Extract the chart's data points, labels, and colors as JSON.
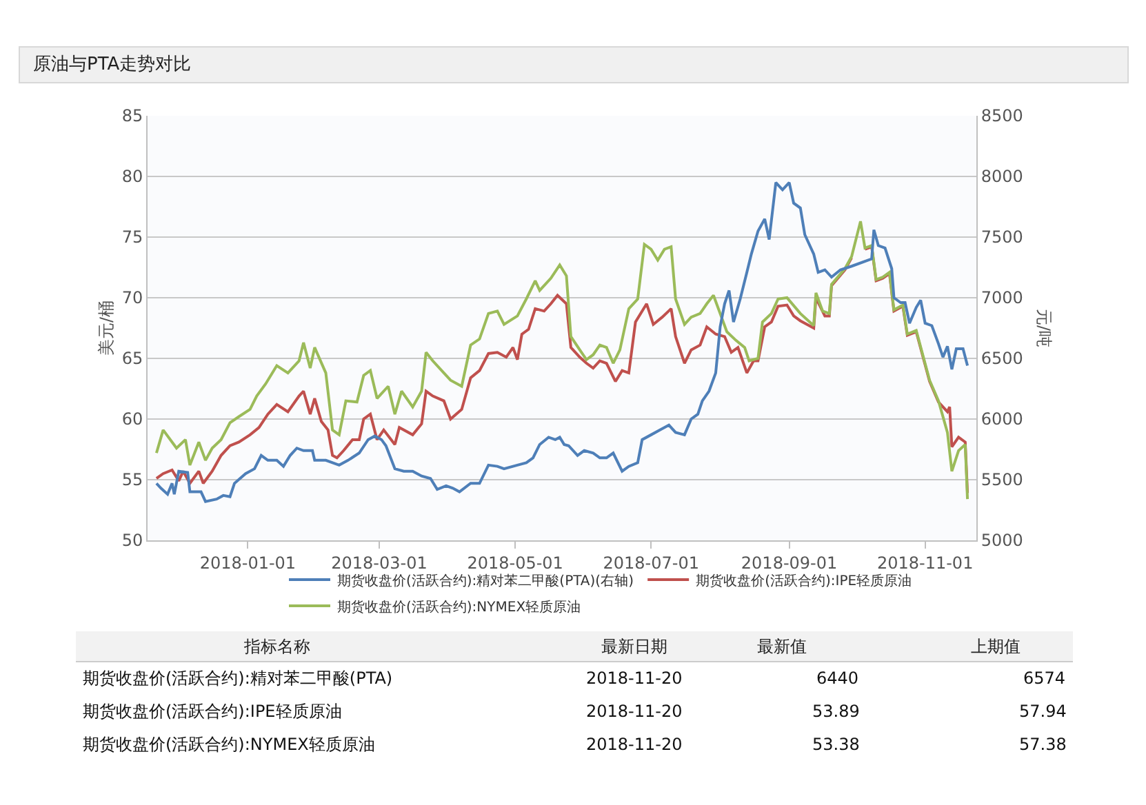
{
  "chart_data": {
    "type": "line",
    "title": "原油与PTA走势对比",
    "ylabel": "美元/桶",
    "y2label": "元/吨",
    "xlim": [
      "2017-11-17",
      "2018-11-24"
    ],
    "xticks": [
      "2018-01-01",
      "2018-03-01",
      "2018-05-01",
      "2018-07-01",
      "2018-09-01",
      "2018-11-01"
    ],
    "ylim": [
      50,
      85
    ],
    "yticks": [
      50,
      55,
      60,
      65,
      70,
      75,
      80,
      85
    ],
    "y2lim": [
      5000,
      8500
    ],
    "y2ticks": [
      5000,
      5500,
      6000,
      6500,
      7000,
      7500,
      8000,
      8500
    ],
    "grid": "y",
    "legend": "bottom",
    "marker": "none",
    "line_style": "solid",
    "series": [
      {
        "name": "期货收盘价(活跃合约):精对苯二甲酸(PTA)(右轴)",
        "color": "#4e7fb8",
        "axis": "y2",
        "x": [
          "2017-11-21",
          "2017-11-23",
          "2017-11-26",
          "2017-11-28",
          "2017-11-29",
          "2017-12-01",
          "2017-12-05",
          "2017-12-06",
          "2017-12-11",
          "2017-12-13",
          "2017-12-18",
          "2017-12-21",
          "2017-12-24",
          "2017-12-26",
          "2017-12-31",
          "2018-01-04",
          "2018-01-07",
          "2018-01-10",
          "2018-01-14",
          "2018-01-17",
          "2018-01-20",
          "2018-01-23",
          "2018-01-26",
          "2018-01-30",
          "2018-01-31",
          "2018-02-05",
          "2018-02-11",
          "2018-02-15",
          "2018-02-20",
          "2018-02-24",
          "2018-02-27",
          "2018-03-02",
          "2018-03-04",
          "2018-03-08",
          "2018-03-12",
          "2018-03-16",
          "2018-03-20",
          "2018-03-24",
          "2018-03-27",
          "2018-03-31",
          "2018-04-03",
          "2018-04-06",
          "2018-04-11",
          "2018-04-15",
          "2018-04-19",
          "2018-04-23",
          "2018-04-26",
          "2018-05-02",
          "2018-05-06",
          "2018-05-09",
          "2018-05-12",
          "2018-05-16",
          "2018-05-19",
          "2018-05-21",
          "2018-05-23",
          "2018-05-25",
          "2018-05-29",
          "2018-06-01",
          "2018-06-05",
          "2018-06-08",
          "2018-06-11",
          "2018-06-14",
          "2018-06-18",
          "2018-06-21",
          "2018-06-25",
          "2018-06-27",
          "2018-07-01",
          "2018-07-05",
          "2018-07-09",
          "2018-07-12",
          "2018-07-16",
          "2018-07-19",
          "2018-07-22",
          "2018-07-24",
          "2018-07-27",
          "2018-07-30",
          "2018-08-01",
          "2018-08-03",
          "2018-08-05",
          "2018-08-07",
          "2018-08-10",
          "2018-08-13",
          "2018-08-15",
          "2018-08-18",
          "2018-08-21",
          "2018-08-23",
          "2018-08-26",
          "2018-08-29",
          "2018-09-01",
          "2018-09-03",
          "2018-09-06",
          "2018-09-08",
          "2018-09-12",
          "2018-09-14",
          "2018-09-17",
          "2018-09-20",
          "2018-09-24",
          "2018-09-29",
          "2018-10-08",
          "2018-10-09",
          "2018-10-11",
          "2018-10-14",
          "2018-10-17",
          "2018-10-18",
          "2018-10-21",
          "2018-10-23",
          "2018-10-25",
          "2018-10-28",
          "2018-10-30",
          "2018-11-01",
          "2018-11-04",
          "2018-11-07",
          "2018-11-09",
          "2018-11-11",
          "2018-11-13",
          "2018-11-15",
          "2018-11-18",
          "2018-11-20"
        ],
        "values": [
          5470,
          5430,
          5380,
          5470,
          5380,
          5570,
          5560,
          5400,
          5400,
          5320,
          5340,
          5370,
          5360,
          5470,
          5550,
          5590,
          5700,
          5660,
          5660,
          5610,
          5700,
          5760,
          5740,
          5740,
          5660,
          5660,
          5620,
          5660,
          5720,
          5830,
          5860,
          5830,
          5780,
          5590,
          5570,
          5570,
          5530,
          5510,
          5420,
          5450,
          5430,
          5400,
          5470,
          5470,
          5620,
          5610,
          5590,
          5620,
          5640,
          5680,
          5790,
          5850,
          5830,
          5850,
          5790,
          5780,
          5700,
          5740,
          5720,
          5680,
          5680,
          5720,
          5570,
          5610,
          5640,
          5830,
          5870,
          5910,
          5950,
          5890,
          5870,
          6000,
          6040,
          6150,
          6230,
          6380,
          6760,
          6950,
          7060,
          6800,
          6990,
          7210,
          7360,
          7550,
          7650,
          7480,
          7950,
          7890,
          7950,
          7780,
          7740,
          7520,
          7360,
          7210,
          7230,
          7170,
          7230,
          7260,
          7320,
          7560,
          7430,
          7410,
          7240,
          7000,
          6960,
          6960,
          6790,
          6920,
          6980,
          6790,
          6770,
          6620,
          6510,
          6600,
          6410,
          6580,
          6580,
          6440
        ]
      },
      {
        "name": "期货收盘价(活跃合约):IPE轻质原油",
        "color": "#c0504d",
        "x": [
          "2017-11-21",
          "2017-11-24",
          "2017-11-28",
          "2017-12-01",
          "2017-12-03",
          "2017-12-06",
          "2017-12-10",
          "2017-12-12",
          "2017-12-16",
          "2017-12-20",
          "2017-12-24",
          "2017-12-28",
          "2018-01-02",
          "2018-01-06",
          "2018-01-10",
          "2018-01-14",
          "2018-01-19",
          "2018-01-24",
          "2018-01-26",
          "2018-01-29",
          "2018-01-31",
          "2018-02-03",
          "2018-02-06",
          "2018-02-08",
          "2018-02-10",
          "2018-02-13",
          "2018-02-17",
          "2018-02-20",
          "2018-02-22",
          "2018-02-25",
          "2018-02-28",
          "2018-03-03",
          "2018-03-08",
          "2018-03-10",
          "2018-03-16",
          "2018-03-20",
          "2018-03-22",
          "2018-03-25",
          "2018-03-30",
          "2018-04-02",
          "2018-04-07",
          "2018-04-11",
          "2018-04-15",
          "2018-04-19",
          "2018-04-23",
          "2018-04-27",
          "2018-04-30",
          "2018-05-02",
          "2018-05-04",
          "2018-05-07",
          "2018-05-10",
          "2018-05-14",
          "2018-05-17",
          "2018-05-20",
          "2018-05-24",
          "2018-05-26",
          "2018-05-30",
          "2018-06-02",
          "2018-06-05",
          "2018-06-08",
          "2018-06-11",
          "2018-06-15",
          "2018-06-18",
          "2018-06-21",
          "2018-06-24",
          "2018-06-29",
          "2018-07-02",
          "2018-07-06",
          "2018-07-10",
          "2018-07-12",
          "2018-07-16",
          "2018-07-19",
          "2018-07-23",
          "2018-07-26",
          "2018-07-30",
          "2018-08-03",
          "2018-08-06",
          "2018-08-09",
          "2018-08-13",
          "2018-08-16",
          "2018-08-18",
          "2018-08-21",
          "2018-08-24",
          "2018-08-27",
          "2018-08-31",
          "2018-09-03",
          "2018-09-06",
          "2018-09-12",
          "2018-09-13",
          "2018-09-17",
          "2018-09-19",
          "2018-09-20",
          "2018-09-26",
          "2018-09-29",
          "2018-10-03",
          "2018-10-05",
          "2018-10-08",
          "2018-10-10",
          "2018-10-13",
          "2018-10-16",
          "2018-10-18",
          "2018-10-22",
          "2018-10-24",
          "2018-10-28",
          "2018-11-03",
          "2018-11-07",
          "2018-11-11",
          "2018-11-12",
          "2018-11-13",
          "2018-11-16",
          "2018-11-19",
          "2018-11-20"
        ],
        "values": [
          55.1,
          55.5,
          55.8,
          54.9,
          55.7,
          54.7,
          55.7,
          54.7,
          55.7,
          57.0,
          57.8,
          58.1,
          58.7,
          59.3,
          60.4,
          61.2,
          60.6,
          61.9,
          62.3,
          60.4,
          61.7,
          59.8,
          59.1,
          57.0,
          56.8,
          57.4,
          58.3,
          58.3,
          60.0,
          60.4,
          58.3,
          59.1,
          57.9,
          59.3,
          58.7,
          59.6,
          62.3,
          61.9,
          61.5,
          60.0,
          60.8,
          63.4,
          64.0,
          65.4,
          65.5,
          65.1,
          65.9,
          64.9,
          67.0,
          67.4,
          69.1,
          68.9,
          69.5,
          70.2,
          69.5,
          65.9,
          65.1,
          64.6,
          64.2,
          64.8,
          64.6,
          63.1,
          64.0,
          63.8,
          68.0,
          69.5,
          67.8,
          68.4,
          69.1,
          66.8,
          64.6,
          65.7,
          66.1,
          67.6,
          67.0,
          66.8,
          65.5,
          65.9,
          63.8,
          64.8,
          64.8,
          67.6,
          68.0,
          69.3,
          69.4,
          68.5,
          68.1,
          67.5,
          70.0,
          68.5,
          68.5,
          71.0,
          72.3,
          73.3,
          null,
          74.0,
          74.2,
          71.4,
          71.6,
          72.0,
          68.9,
          69.3,
          66.9,
          67.2,
          63.1,
          61.4,
          60.6,
          61.0,
          57.7,
          58.5,
          58.1,
          53.9
        ]
      },
      {
        "name": "期货收盘价(活跃合约):NYMEX轻质原油",
        "color": "#9bbb59",
        "x": [
          "2017-11-21",
          "2017-11-24",
          "2017-11-30",
          "2017-12-04",
          "2017-12-06",
          "2017-12-10",
          "2017-12-13",
          "2017-12-16",
          "2017-12-20",
          "2017-12-24",
          "2017-12-28",
          "2018-01-02",
          "2018-01-05",
          "2018-01-09",
          "2018-01-14",
          "2018-01-19",
          "2018-01-24",
          "2018-01-26",
          "2018-01-29",
          "2018-01-31",
          "2018-02-05",
          "2018-02-08",
          "2018-02-11",
          "2018-02-14",
          "2018-02-19",
          "2018-02-22",
          "2018-02-25",
          "2018-02-28",
          "2018-03-05",
          "2018-03-08",
          "2018-03-11",
          "2018-03-16",
          "2018-03-20",
          "2018-03-22",
          "2018-03-25",
          "2018-03-30",
          "2018-04-02",
          "2018-04-07",
          "2018-04-11",
          "2018-04-15",
          "2018-04-19",
          "2018-04-23",
          "2018-04-26",
          "2018-05-02",
          "2018-05-06",
          "2018-05-10",
          "2018-05-12",
          "2018-05-17",
          "2018-05-21",
          "2018-05-24",
          "2018-05-26",
          "2018-05-30",
          "2018-06-02",
          "2018-06-05",
          "2018-06-08",
          "2018-06-11",
          "2018-06-14",
          "2018-06-17",
          "2018-06-21",
          "2018-06-25",
          "2018-06-28",
          "2018-07-01",
          "2018-07-04",
          "2018-07-07",
          "2018-07-10",
          "2018-07-12",
          "2018-07-16",
          "2018-07-19",
          "2018-07-23",
          "2018-07-26",
          "2018-07-29",
          "2018-08-01",
          "2018-08-04",
          "2018-08-08",
          "2018-08-12",
          "2018-08-14",
          "2018-08-18",
          "2018-08-20",
          "2018-08-24",
          "2018-08-27",
          "2018-08-31",
          "2018-09-06",
          "2018-09-12",
          "2018-09-13",
          "2018-09-16",
          "2018-09-19",
          "2018-09-20",
          "2018-09-26",
          "2018-09-29",
          "2018-10-03",
          "2018-10-05",
          "2018-10-08",
          "2018-10-10",
          "2018-10-13",
          "2018-10-16",
          "2018-10-18",
          "2018-10-22",
          "2018-10-24",
          "2018-10-28",
          "2018-11-03",
          "2018-11-07",
          "2018-11-11",
          "2018-11-13",
          "2018-11-16",
          "2018-11-19",
          "2018-11-20"
        ],
        "values": [
          57.2,
          59.1,
          57.6,
          58.3,
          56.2,
          58.1,
          56.6,
          57.6,
          58.3,
          59.7,
          60.2,
          60.8,
          61.9,
          62.9,
          64.4,
          63.8,
          64.8,
          66.3,
          64.2,
          65.9,
          63.8,
          59.1,
          58.7,
          61.5,
          61.4,
          63.6,
          64.0,
          61.7,
          62.7,
          60.4,
          62.3,
          61.0,
          62.3,
          65.5,
          64.8,
          63.8,
          63.2,
          62.7,
          66.1,
          66.6,
          68.7,
          68.9,
          67.8,
          68.5,
          69.9,
          71.4,
          70.6,
          71.6,
          72.7,
          71.8,
          66.8,
          65.7,
          64.9,
          65.3,
          66.1,
          65.9,
          64.6,
          65.7,
          69.1,
          69.9,
          74.4,
          74.0,
          73.1,
          74.0,
          74.2,
          69.9,
          67.8,
          68.4,
          68.7,
          69.5,
          70.2,
          68.7,
          67.2,
          66.5,
          65.9,
          64.8,
          65.0,
          68.0,
          68.7,
          69.9,
          70.0,
          68.7,
          67.7,
          70.4,
          68.9,
          68.7,
          71.1,
          72.4,
          73.4,
          76.3,
          74.1,
          74.3,
          71.5,
          71.7,
          72.1,
          69.0,
          69.4,
          67.0,
          67.3,
          63.2,
          61.5,
          58.9,
          55.7,
          57.4,
          57.9,
          53.4
        ]
      }
    ],
    "annotations": [
      "指标名称",
      "最新日期",
      "最新值",
      "上期值",
      "期货收盘价(活跃合约):精对苯二甲酸(PTA)",
      "2018-11-20",
      "6440",
      "6574",
      "期货收盘价(活跃合约):IPE轻质原油",
      "2018-11-20",
      "53.89",
      "57.94",
      "期货收盘价(活跃合约):NYMEX轻质原油",
      "2018-11-20",
      "53.38",
      "57.38"
    ]
  }
}
